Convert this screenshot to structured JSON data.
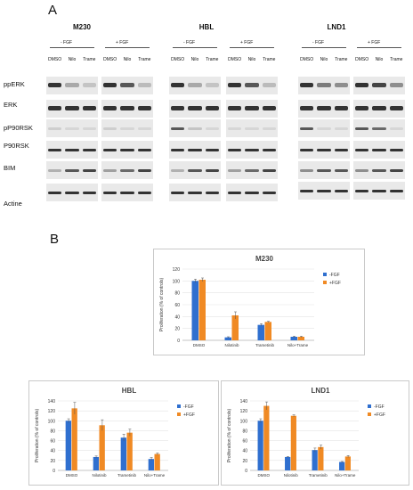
{
  "panel_a": {
    "letter": "A",
    "row_labels": [
      "ppERK",
      "ERK",
      "pP90RSK",
      "P90RSK",
      "BIM",
      "Actine"
    ],
    "cell_lines": [
      {
        "name": "M230",
        "minus_fgf": "- FGF",
        "plus_fgf": "+ FGF",
        "lanes": [
          "DMSO",
          "Nilo",
          "Trame",
          "DMSO",
          "Nilo",
          "Trame"
        ]
      },
      {
        "name": "HBL",
        "minus_fgf": "- FGF",
        "plus_fgf": "+ FGF",
        "lanes": [
          "DMSO",
          "Nilo",
          "Trame",
          "DMSO",
          "Nilo",
          "Trame"
        ]
      },
      {
        "name": "LND1",
        "minus_fgf": "- FGF",
        "plus_fgf": "+ FGF",
        "lanes": [
          "DMSO",
          "Nilo",
          "Trame",
          "DMSO",
          "Nilo",
          "Trame"
        ]
      }
    ],
    "band_intensity_note_colors": {
      "band": "#2b2b2b",
      "background": "#e9e9e9"
    }
  },
  "panel_b": {
    "letter": "B"
  },
  "chart_data": [
    {
      "type": "bar",
      "title": "M230",
      "ylabel": "Proliferation (% of controls)",
      "xlabel": "",
      "categories": [
        "DMSO",
        "Nilotinib",
        "Trametinib",
        "Nilo+Trame"
      ],
      "ylim": [
        0,
        120
      ],
      "yticks": [
        0,
        20,
        40,
        60,
        80,
        100,
        120
      ],
      "series": [
        {
          "name": "-FGF",
          "color": "#2f6fcf",
          "values": [
            100,
            5,
            26,
            6
          ],
          "errors": [
            3,
            1,
            2,
            1
          ]
        },
        {
          "name": "+FGF",
          "color": "#f08a24",
          "values": [
            102,
            42,
            31,
            6
          ],
          "errors": [
            3,
            6,
            1,
            1
          ]
        }
      ],
      "legend_position": "right"
    },
    {
      "type": "bar",
      "title": "HBL",
      "ylabel": "Proliferation (% of controls)",
      "xlabel": "",
      "categories": [
        "DMSO",
        "Nilotinib",
        "Trametinib",
        "Nilo+Trame"
      ],
      "ylim": [
        0,
        140
      ],
      "yticks": [
        0,
        20,
        40,
        60,
        80,
        100,
        120,
        140
      ],
      "series": [
        {
          "name": "-FGF",
          "color": "#2f6fcf",
          "values": [
            100,
            27,
            66,
            23
          ],
          "errors": [
            4,
            2,
            7,
            3
          ]
        },
        {
          "name": "+FGF",
          "color": "#f08a24",
          "values": [
            125,
            91,
            76,
            33
          ],
          "errors": [
            12,
            11,
            7,
            2
          ]
        }
      ],
      "legend_position": "right"
    },
    {
      "type": "bar",
      "title": "LND1",
      "ylabel": "Proliferation (% of controls)",
      "xlabel": "",
      "categories": [
        "DMSO",
        "Nilotinib",
        "Trametinib",
        "Nilo+Trame"
      ],
      "ylim": [
        0,
        140
      ],
      "yticks": [
        0,
        20,
        40,
        60,
        80,
        100,
        120,
        140
      ],
      "series": [
        {
          "name": "-FGF",
          "color": "#2f6fcf",
          "values": [
            100,
            27,
            41,
            17
          ],
          "errors": [
            4,
            1,
            4,
            1
          ]
        },
        {
          "name": "+FGF",
          "color": "#f08a24",
          "values": [
            130,
            110,
            47,
            28
          ],
          "errors": [
            8,
            2,
            4,
            2
          ]
        }
      ],
      "legend_position": "right"
    }
  ]
}
